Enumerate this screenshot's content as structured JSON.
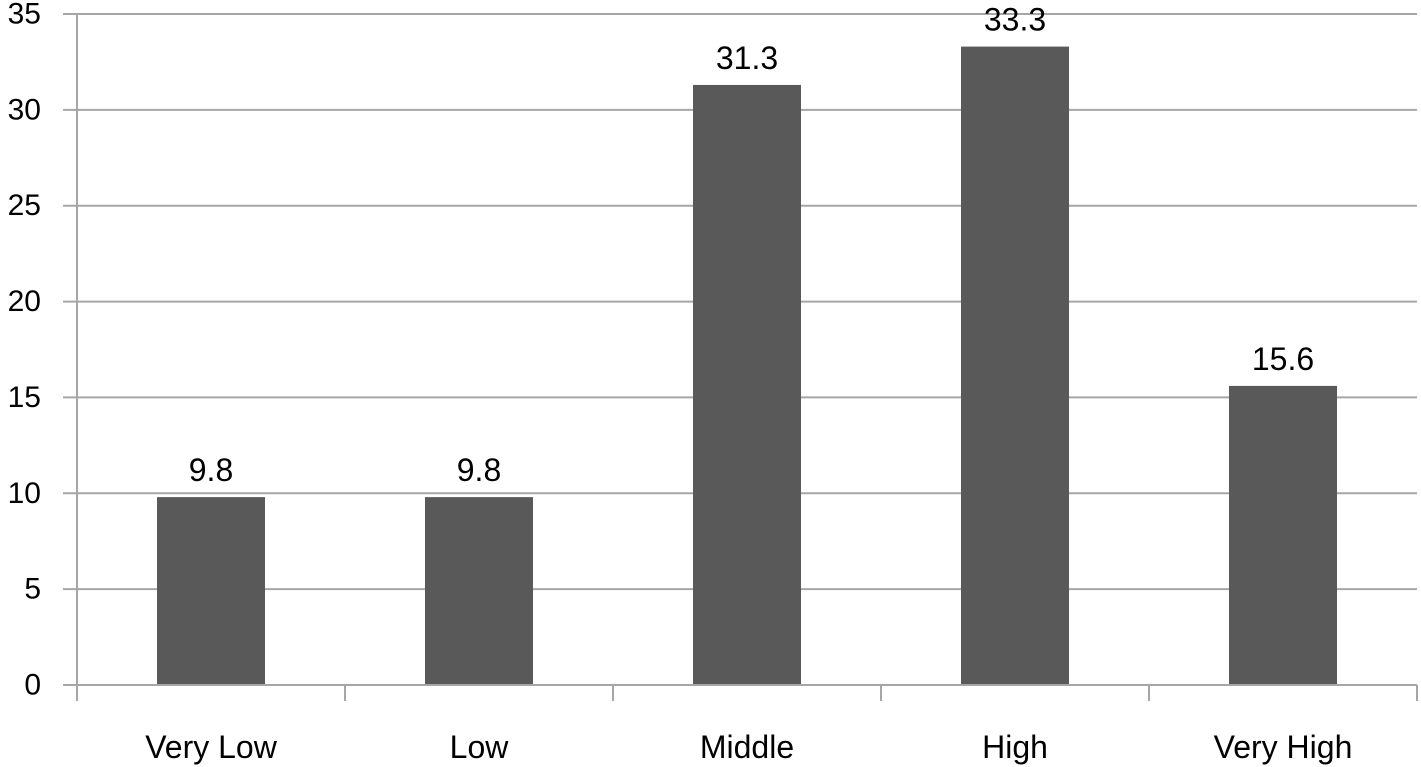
{
  "chart_data": {
    "type": "bar",
    "categories": [
      "Very Low",
      "Low",
      "Middle",
      "High",
      "Very High"
    ],
    "values": [
      9.8,
      9.8,
      31.3,
      33.3,
      15.6
    ],
    "data_labels": [
      "9.8",
      "9.8",
      "31.3",
      "33.3",
      "15.6"
    ],
    "y_ticks": [
      "0",
      "5",
      "10",
      "15",
      "20",
      "25",
      "30",
      "35"
    ],
    "ylim": [
      0,
      35
    ],
    "y_step": 5,
    "grid": true,
    "bar_color": "#595959",
    "grid_color": "#a6a6a6",
    "axis_color": "#a6a6a6"
  }
}
